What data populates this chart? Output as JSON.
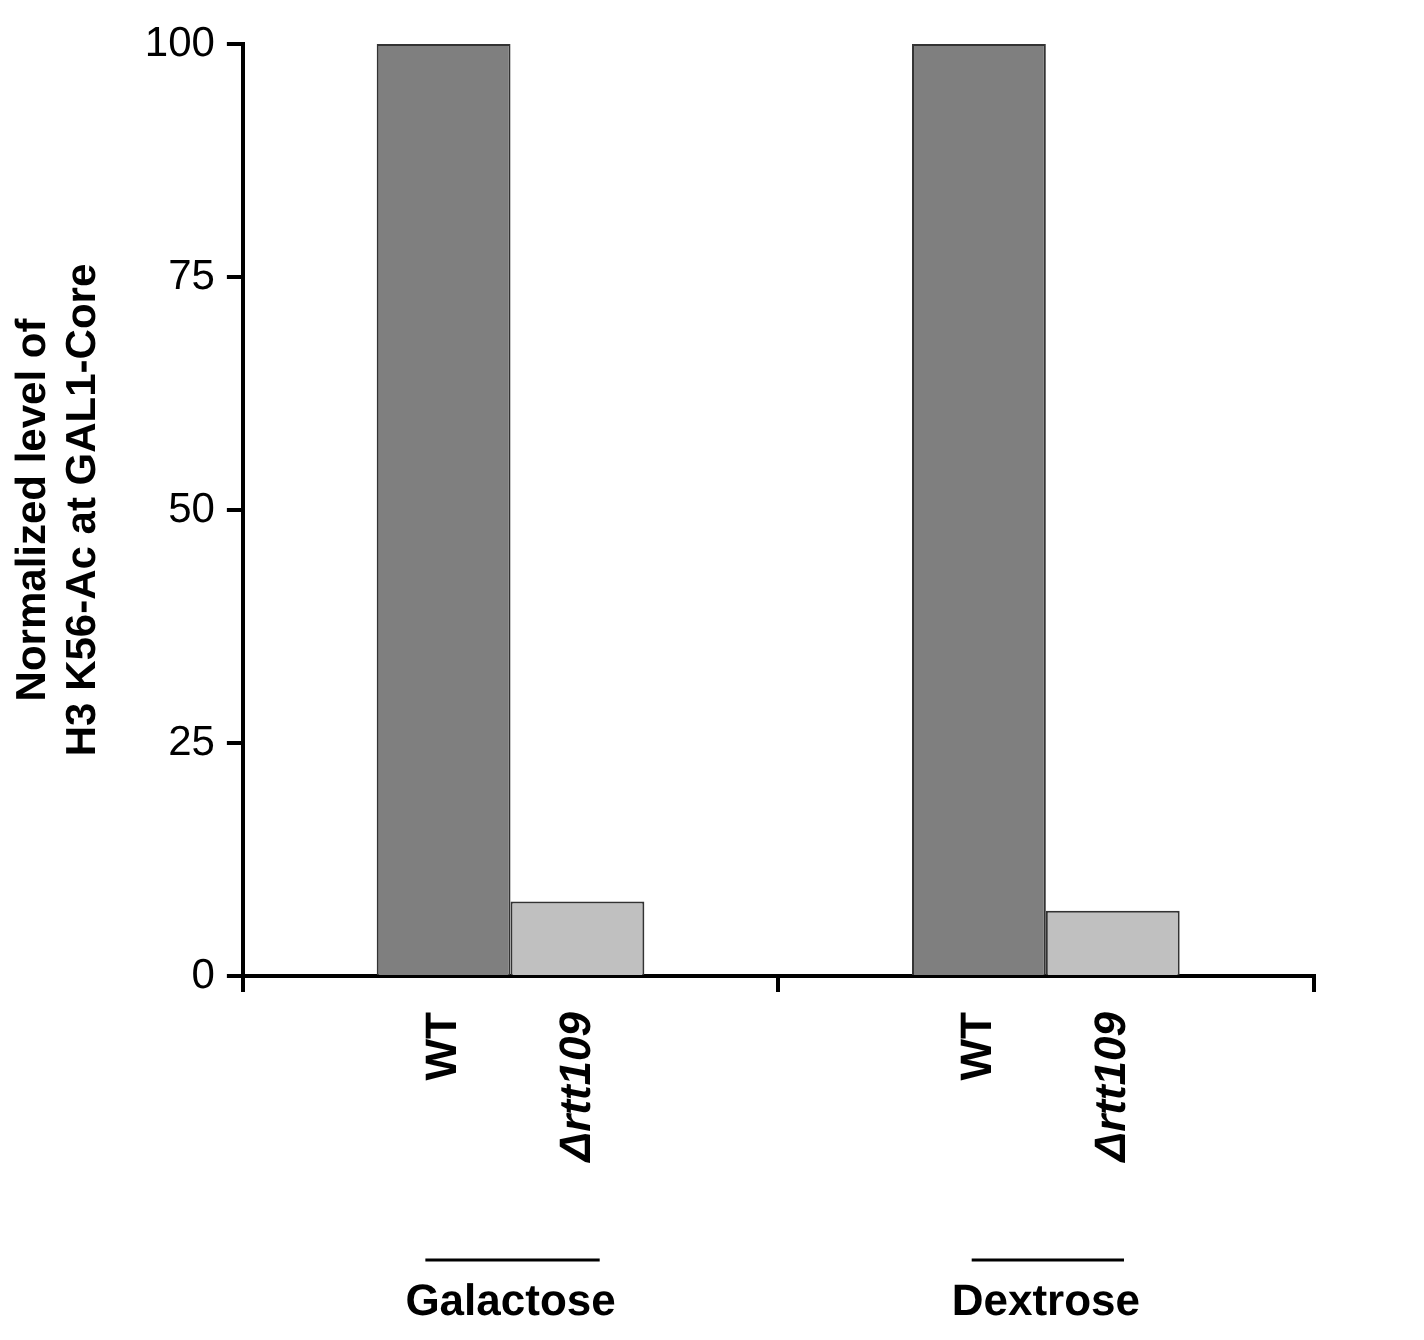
{
  "chart_data": {
    "type": "bar",
    "ylabel": "Normalized level of\nH3 K56-Ac at GAL1-Core",
    "categories": [
      "Galactose",
      "Dextrose"
    ],
    "series": [
      {
        "name": "WT",
        "color": "#7f7f7f",
        "values": [
          100,
          100
        ]
      },
      {
        "name": "Δrtt109",
        "color": "#c0c0c0",
        "values": [
          8,
          7
        ]
      }
    ],
    "ylim": [
      0,
      100
    ],
    "yticks": [
      0,
      25,
      50,
      75,
      100
    ],
    "grid": false,
    "legend": false
  }
}
